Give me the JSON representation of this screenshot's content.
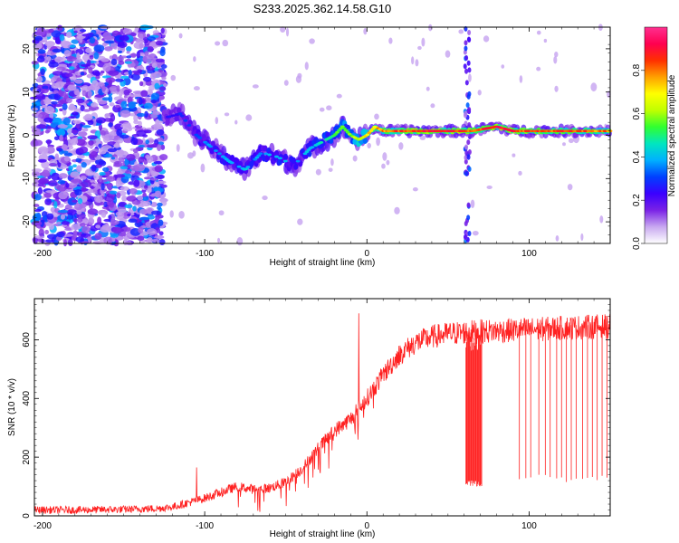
{
  "title": "S233.2025.362.14.58.G10",
  "chart_data": [
    {
      "type": "heatmap",
      "xlabel": "Height of straight line (km)",
      "ylabel": "Frequency (Hz)",
      "xlim": [
        -205,
        150
      ],
      "ylim": [
        -25,
        25
      ],
      "xticks": [
        -200,
        -100,
        0,
        100
      ],
      "yticks": [
        20,
        10,
        0,
        -10,
        -20
      ],
      "colorbar": {
        "label": "Normalized spectral amplitude",
        "range": [
          0,
          1
        ],
        "ticks": [
          "0.0",
          "0.2",
          "0.4",
          "0.6",
          "0.8"
        ],
        "colors": [
          "#ffffff",
          "#c8a8f0",
          "#7a22e6",
          "#3a00ff",
          "#0040ff",
          "#00b0ff",
          "#00e6c0",
          "#30ff30",
          "#c0ff00",
          "#ffff00",
          "#ffa000",
          "#ff3000",
          "#ff0050",
          "#ff3090"
        ]
      },
      "ridge": {
        "x": [
          -125,
          -115,
          -105,
          -95,
          -85,
          -75,
          -65,
          -55,
          -45,
          -35,
          -25,
          -20,
          -15,
          -10,
          -5,
          0,
          5,
          10,
          30,
          55,
          65,
          80,
          90,
          100,
          120,
          150
        ],
        "freq": [
          4,
          5,
          0,
          -3,
          -6,
          -8,
          -4,
          -5,
          -7,
          -3,
          -1,
          0,
          2,
          0,
          -1,
          0,
          2,
          1,
          1,
          1,
          1,
          2,
          1,
          1,
          1,
          1
        ],
        "amp": [
          0.25,
          0.3,
          0.35,
          0.4,
          0.4,
          0.45,
          0.4,
          0.45,
          0.4,
          0.45,
          0.5,
          0.55,
          0.6,
          0.6,
          0.7,
          0.75,
          0.8,
          0.85,
          0.95,
          0.95,
          0.9,
          0.95,
          0.95,
          0.9,
          0.9,
          0.85
        ]
      },
      "noise_region": [
        -205,
        -125
      ],
      "disturbance_x": 62
    },
    {
      "type": "line",
      "xlabel": "Height of straight line (km)",
      "ylabel": "SNR (10 * v/v)",
      "xlim": [
        -205,
        150
      ],
      "ylim": [
        0,
        740
      ],
      "xticks": [
        -200,
        -100,
        0,
        100
      ],
      "yticks": [
        0,
        200,
        400,
        600
      ],
      "color": "#ff2020",
      "envelope": {
        "x": [
          -205,
          -180,
          -150,
          -130,
          -120,
          -110,
          -100,
          -90,
          -80,
          -70,
          -60,
          -50,
          -40,
          -30,
          -20,
          -10,
          0,
          10,
          20,
          30,
          40,
          50,
          60,
          70,
          80,
          90,
          100,
          110,
          120,
          130,
          140,
          150
        ],
        "snr": [
          20,
          20,
          22,
          25,
          30,
          45,
          60,
          80,
          100,
          90,
          95,
          115,
          160,
          230,
          290,
          330,
          400,
          480,
          550,
          590,
          610,
          620,
          625,
          628,
          630,
          632,
          635,
          637,
          640,
          642,
          645,
          645
        ]
      },
      "noise_amplitude": 30,
      "spikes": [
        {
          "x": -105,
          "snr": 165
        },
        {
          "x": -5,
          "snr": 690
        }
      ],
      "dropouts": {
        "dense_range": [
          61,
          71
        ],
        "dense_level": 100,
        "lines": [
          94,
          98,
          101,
          106,
          110,
          113,
          117,
          120,
          123,
          126,
          129,
          133,
          136,
          139,
          142,
          145,
          148
        ],
        "line_level": 115
      }
    }
  ]
}
